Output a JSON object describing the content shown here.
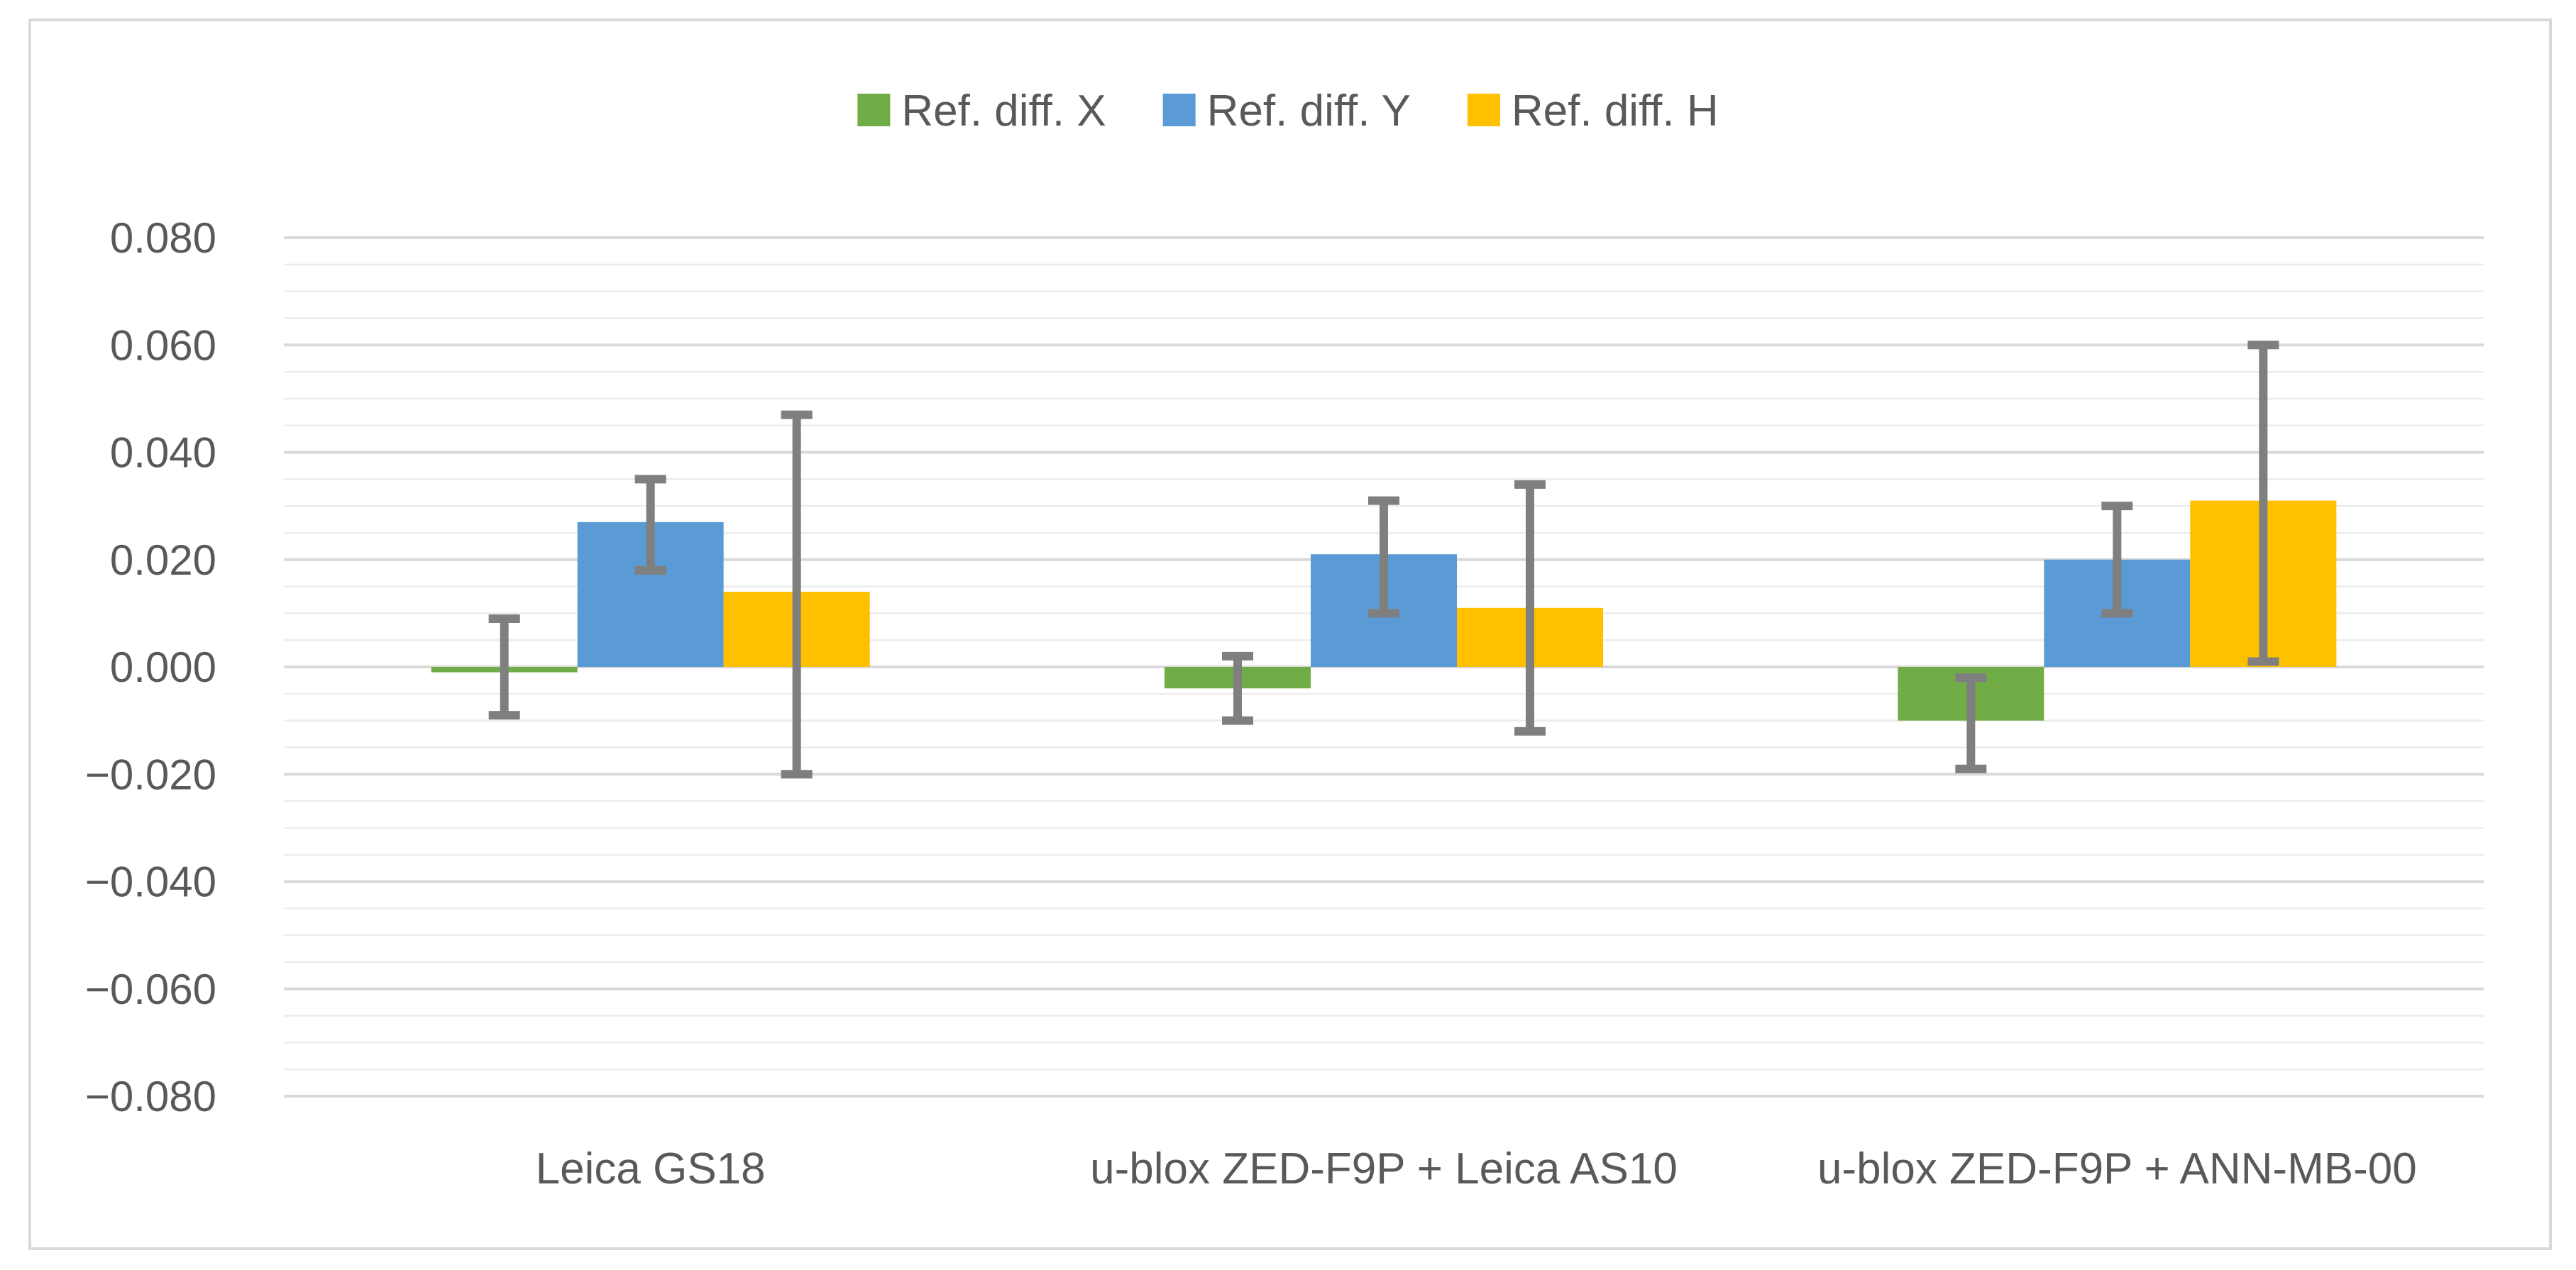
{
  "chart_data": {
    "type": "bar",
    "title": "",
    "xlabel": "",
    "ylabel": "",
    "ylim": [
      -0.08,
      0.08
    ],
    "y_major_ticks": [
      0.08,
      0.06,
      0.04,
      0.02,
      0.0,
      -0.02,
      -0.04,
      -0.06,
      -0.08
    ],
    "y_tick_labels": [
      "0.080",
      "0.060",
      "0.040",
      "0.020",
      "0.000",
      "−0.020",
      "−0.040",
      "−0.060",
      "−0.080"
    ],
    "minor_grid_step": 0.005,
    "grid": true,
    "legend_position": "top-center",
    "categories": [
      "Leica GS18",
      "u-blox ZED-F9P + Leica AS10",
      "u-blox ZED-F9P + ANN-MB-00"
    ],
    "series": [
      {
        "name": "Ref. diff. X",
        "color": "#70ad47",
        "values": [
          -0.001,
          -0.004,
          -0.01
        ],
        "error_low": [
          -0.009,
          -0.01,
          -0.019
        ],
        "error_high": [
          0.009,
          0.002,
          -0.002
        ]
      },
      {
        "name": "Ref. diff. Y",
        "color": "#5b9bd5",
        "values": [
          0.027,
          0.021,
          0.02
        ],
        "error_low": [
          0.018,
          0.01,
          0.01
        ],
        "error_high": [
          0.035,
          0.031,
          0.03
        ]
      },
      {
        "name": "Ref. diff. H",
        "color": "#ffc000",
        "values": [
          0.014,
          0.011,
          0.031
        ],
        "error_low": [
          -0.02,
          -0.012,
          0.001
        ],
        "error_high": [
          0.047,
          0.034,
          0.06
        ]
      }
    ],
    "error_bar_color": "#7f7f7f"
  }
}
